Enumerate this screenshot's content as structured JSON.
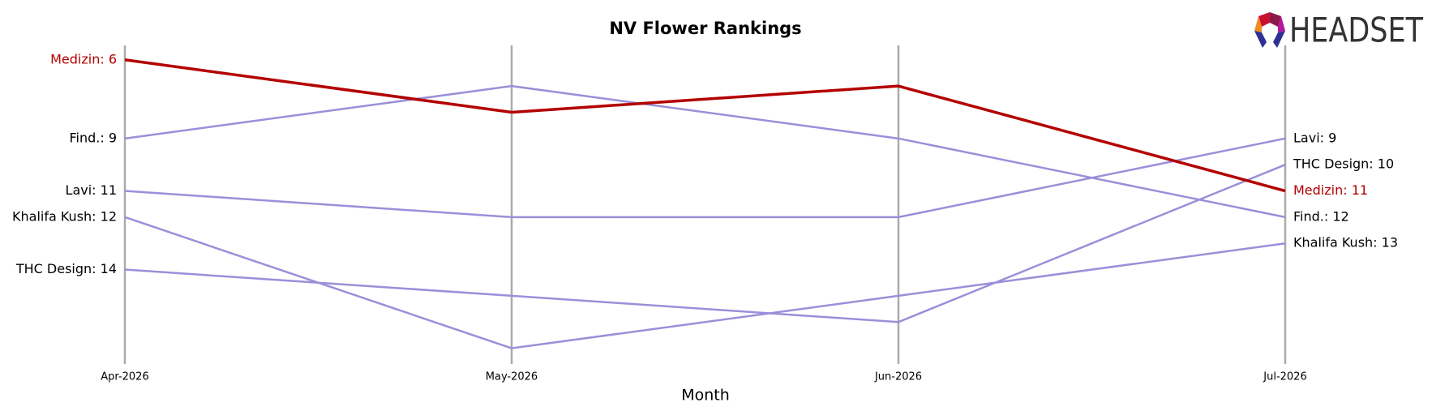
{
  "chart_data": {
    "type": "bump",
    "title": "NV Flower Rankings",
    "logo": "HEADSET",
    "x_label": "Month",
    "categories": [
      "Apr-2026",
      "May-2026",
      "Jun-2026",
      "Jul-2026"
    ],
    "ylim": [
      5.45,
      17.6
    ],
    "series": [
      {
        "name": "Find.",
        "color": "#9b8fd9",
        "values": [
          9,
          7,
          9,
          12
        ],
        "value_labels": [
          "Find.: 9",
          null,
          null,
          "Find.: 12"
        ]
      },
      {
        "name": "Lavi",
        "color": "#9b8fd9",
        "values": [
          11,
          12,
          12,
          9
        ],
        "value_labels": [
          "Lavi: 11",
          null,
          null,
          "Lavi: 9"
        ]
      },
      {
        "name": "Khalifa Kush",
        "color": "#9b8fd9",
        "values": [
          12,
          17,
          15,
          13
        ],
        "value_labels": [
          "Khalifa Kush: 12",
          null,
          null,
          "Khalifa Kush: 13"
        ]
      },
      {
        "name": "THC Design",
        "color": "#9b8fd9",
        "values": [
          14,
          15,
          16,
          10
        ],
        "value_labels": [
          "THC Design: 14",
          null,
          null,
          "THC Design: 10"
        ]
      },
      {
        "name": "Medizin",
        "color": "#b30000",
        "highlight": true,
        "values": [
          6,
          8,
          7,
          11
        ],
        "value_labels": [
          "Medizin: 6",
          null,
          null,
          "Medizin: 11"
        ]
      }
    ]
  }
}
